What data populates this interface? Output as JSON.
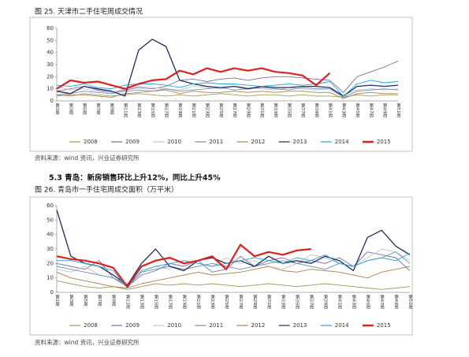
{
  "section_heading": "5.3 青岛：新房销售环比上升12%，同比上升45%",
  "chart_data": [
    {
      "type": "line",
      "title": "图 25.  天津市二手住宅周成交情况",
      "source": "资料来源：wind 资讯，兴业证券研究所",
      "categories": [
        "第1周",
        "第3周",
        "第5周",
        "第7周",
        "第9周",
        "第11周",
        "第13周",
        "第15周",
        "第17周",
        "第19周",
        "第21周",
        "第23周",
        "第25周",
        "第27周",
        "第29周",
        "第31周",
        "第33周",
        "第35周",
        "第37周",
        "第39周",
        "第41周",
        "第43周",
        "第45周",
        "第47周",
        "第49周",
        "第51周"
      ],
      "ylim": [
        0,
        60
      ],
      "yticks": [
        0,
        10,
        20,
        30,
        40,
        50,
        60
      ],
      "legend": "bottom",
      "series": [
        {
          "name": "2008",
          "color": "#9c9c5c",
          "values": [
            5,
            4,
            6,
            5,
            4,
            5,
            6,
            5,
            4,
            5,
            4,
            5,
            6,
            5,
            4,
            5,
            5,
            4,
            5,
            4,
            4,
            3,
            5,
            4,
            5,
            5
          ]
        },
        {
          "name": "2009",
          "color": "#7b6caa",
          "values": [
            8,
            10,
            12,
            9,
            7,
            9,
            11,
            10,
            12,
            17,
            18,
            16,
            18,
            19,
            17,
            19,
            20,
            20,
            19,
            18,
            17,
            7,
            20,
            24,
            28,
            33
          ]
        },
        {
          "name": "2010",
          "color": "#c4c4c4",
          "values": [
            12,
            9,
            10,
            8,
            7,
            10,
            12,
            11,
            10,
            9,
            12,
            11,
            10,
            12,
            11,
            10,
            9,
            11,
            10,
            9,
            10,
            5,
            9,
            10,
            9,
            10
          ]
        },
        {
          "name": "2011",
          "color": "#6f8fc0",
          "values": [
            5,
            6,
            8,
            7,
            6,
            8,
            9,
            8,
            10,
            8,
            9,
            10,
            11,
            9,
            10,
            11,
            10,
            9,
            11,
            10,
            10,
            3,
            8,
            9,
            10,
            9
          ]
        },
        {
          "name": "2012",
          "color": "#b0824c",
          "values": [
            4,
            5,
            5,
            4,
            3,
            6,
            7,
            8,
            9,
            6,
            8,
            7,
            7,
            8,
            7,
            8,
            7,
            8,
            8,
            7,
            7,
            2,
            6,
            7,
            6,
            6
          ]
        },
        {
          "name": "2013",
          "color": "#1f2d5c",
          "values": [
            8,
            6,
            12,
            10,
            8,
            4,
            42,
            51,
            45,
            17,
            14,
            12,
            11,
            12,
            10,
            12,
            11,
            11,
            12,
            12,
            11,
            4,
            12,
            13,
            12,
            13
          ]
        },
        {
          "name": "2014",
          "color": "#1ea8d8",
          "values": [
            13,
            12,
            14,
            11,
            10,
            13,
            14,
            14,
            13,
            11,
            14,
            15,
            14,
            14,
            13,
            12,
            13,
            14,
            13,
            14,
            16,
            4,
            14,
            17,
            15,
            16
          ]
        },
        {
          "name": "2015",
          "color": "#e0201c",
          "values": [
            10,
            17,
            15,
            16,
            13,
            10,
            14,
            17,
            18,
            25,
            22,
            27,
            24,
            27,
            25,
            27,
            24,
            23,
            21,
            13,
            23,
            null,
            null,
            null,
            null,
            null
          ]
        }
      ]
    },
    {
      "type": "line",
      "title": "图 26.  青岛市一手住宅周成交面积（万平米）",
      "source": "资料来源：wind 资讯，兴业证券研究所",
      "categories": [
        "第1周",
        "第3周",
        "第5周",
        "第7周",
        "第9周",
        "第11周",
        "第13周",
        "第15周",
        "第17周",
        "第19周",
        "第21周",
        "第23周",
        "第25周",
        "第27周",
        "第29周",
        "第31周",
        "第33周",
        "第35周",
        "第37周",
        "第39周",
        "第41周",
        "第43周",
        "第45周",
        "第47周",
        "第49周",
        "第51周"
      ],
      "ylim": [
        0,
        60
      ],
      "yticks": [
        0,
        10,
        20,
        30,
        40,
        50,
        60
      ],
      "legend": "bottom",
      "series": [
        {
          "name": "2008",
          "color": "#9c9c5c",
          "values": [
            8,
            6,
            4,
            3,
            4,
            2,
            4,
            6,
            5,
            6,
            5,
            6,
            5,
            4,
            5,
            6,
            5,
            4,
            5,
            6,
            5,
            4,
            3,
            2,
            3,
            4
          ]
        },
        {
          "name": "2009",
          "color": "#7b6caa",
          "values": [
            20,
            18,
            16,
            22,
            10,
            4,
            12,
            15,
            20,
            18,
            22,
            14,
            16,
            25,
            18,
            22,
            24,
            20,
            22,
            20,
            24,
            18,
            28,
            26,
            24,
            15
          ]
        },
        {
          "name": "2010",
          "color": "#c4c4c4",
          "values": [
            16,
            14,
            18,
            12,
            10,
            6,
            14,
            18,
            16,
            22,
            20,
            18,
            24,
            20,
            22,
            18,
            16,
            20,
            26,
            24,
            20,
            18,
            24,
            30,
            28,
            22
          ]
        },
        {
          "name": "2011",
          "color": "#6f8fc0",
          "values": [
            18,
            16,
            14,
            12,
            10,
            5,
            14,
            16,
            18,
            16,
            18,
            20,
            18,
            16,
            18,
            20,
            22,
            20,
            18,
            16,
            20,
            18,
            22,
            24,
            28,
            20
          ]
        },
        {
          "name": "2012",
          "color": "#b0824c",
          "values": [
            14,
            10,
            8,
            6,
            4,
            3,
            6,
            8,
            10,
            12,
            14,
            12,
            13,
            14,
            16,
            18,
            15,
            14,
            16,
            15,
            14,
            12,
            10,
            14,
            16,
            18
          ]
        },
        {
          "name": "2013",
          "color": "#1f2d5c",
          "values": [
            57,
            25,
            20,
            18,
            12,
            5,
            20,
            30,
            18,
            15,
            22,
            24,
            20,
            22,
            18,
            25,
            20,
            22,
            20,
            25,
            22,
            15,
            38,
            43,
            32,
            26
          ]
        },
        {
          "name": "2014",
          "color": "#1ea8d8",
          "values": [
            22,
            22,
            20,
            18,
            15,
            3,
            15,
            18,
            20,
            22,
            20,
            18,
            20,
            22,
            24,
            22,
            20,
            24,
            22,
            26,
            20,
            18,
            22,
            24,
            22,
            27
          ]
        },
        {
          "name": "2015",
          "color": "#e0201c",
          "values": [
            25,
            23,
            22,
            20,
            17,
            4,
            18,
            22,
            24,
            20,
            22,
            25,
            16,
            33,
            25,
            28,
            26,
            29,
            30,
            null,
            null,
            null,
            null,
            null,
            null,
            null
          ]
        }
      ]
    }
  ]
}
